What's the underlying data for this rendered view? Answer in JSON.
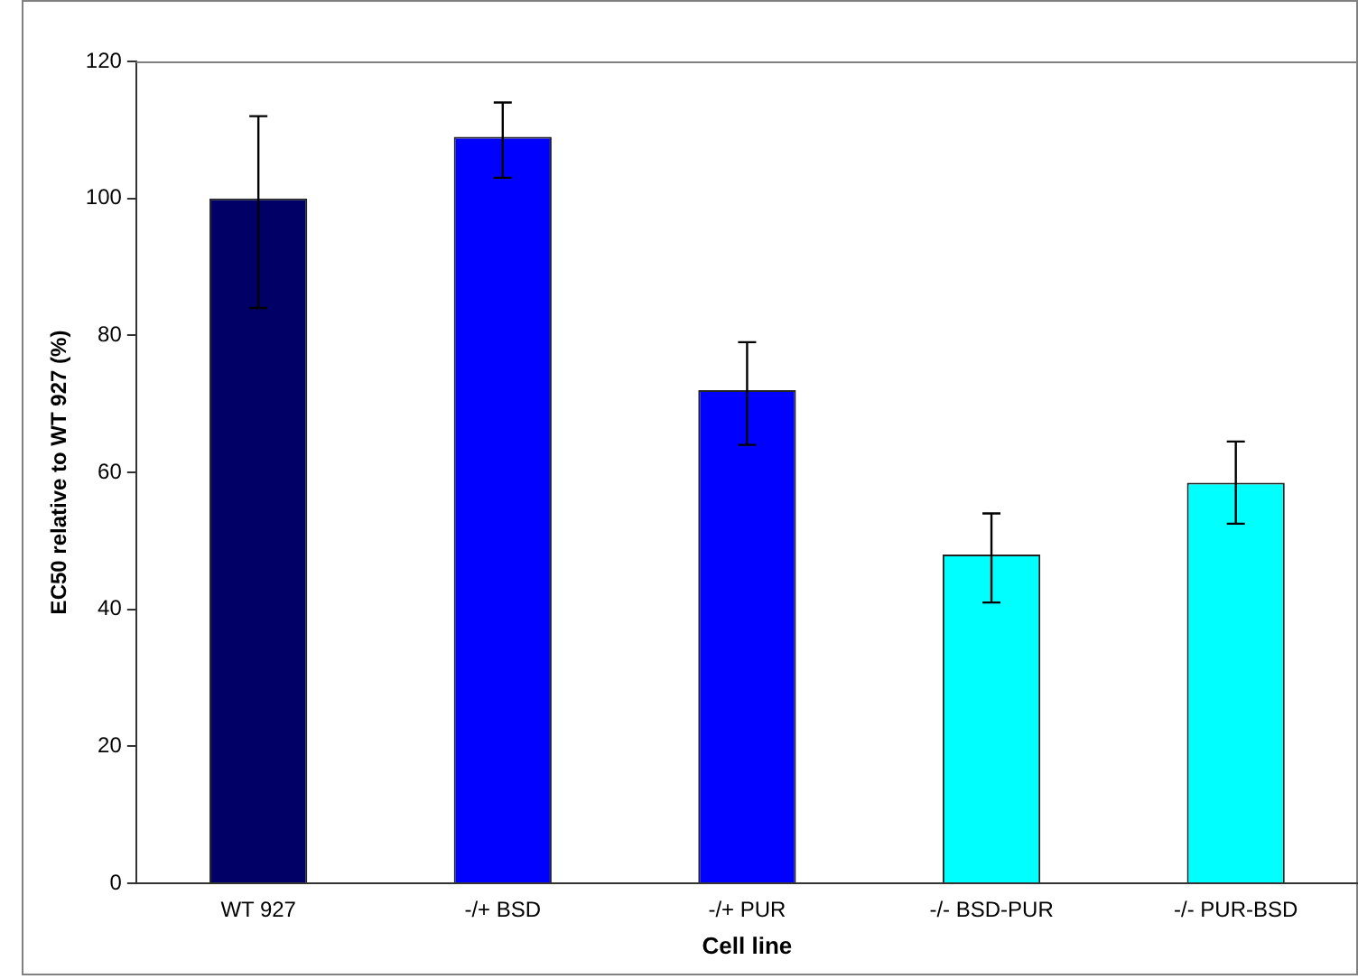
{
  "chart_data": {
    "type": "bar",
    "xlabel": "Cell line",
    "ylabel": "EC50 relative to WT 927 (%)",
    "categories": [
      "WT 927",
      "-/+ BSD",
      "-/+ PUR",
      "-/- BSD-PUR",
      "-/- PUR-BSD"
    ],
    "values": [
      100,
      109,
      72,
      48,
      58.5
    ],
    "colors": [
      "#000066",
      "#0000ff",
      "#0000ff",
      "#00ffff",
      "#00ffff"
    ],
    "errors": [
      [
        84,
        112
      ],
      [
        103,
        114
      ],
      [
        64,
        79
      ],
      [
        41,
        54
      ],
      [
        52.5,
        64.5
      ]
    ],
    "ylim": [
      0,
      120
    ],
    "yticks": [
      0,
      20,
      40,
      60,
      80,
      100,
      120
    ],
    "grid": false
  }
}
